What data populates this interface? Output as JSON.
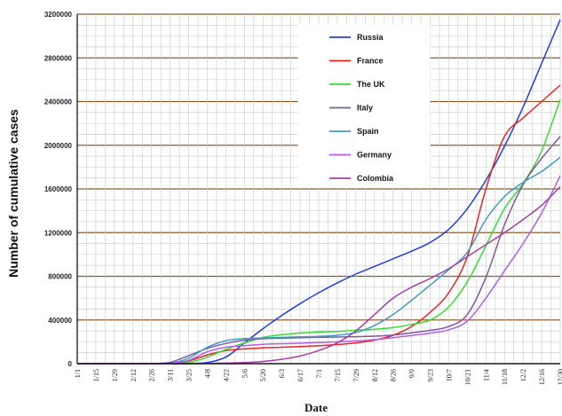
{
  "chart_data": {
    "type": "line",
    "title": "",
    "xlabel": "Date",
    "ylabel": "Number of cumulative cases",
    "ylim": [
      0,
      3200000
    ],
    "yticks": [
      0,
      400000,
      800000,
      1200000,
      1600000,
      2000000,
      2400000,
      2800000,
      3200000
    ],
    "ytick_labels": [
      "0",
      "400000",
      "800000",
      "1200000",
      "1600000",
      "2000000",
      "2400000",
      "2800000",
      "3200000"
    ],
    "x_ticks": [
      "1/1",
      "1/15",
      "1/29",
      "2/12",
      "2/26",
      "3/11",
      "3/25",
      "4/8",
      "4/22",
      "5/6",
      "5/20",
      "6/3",
      "6/17",
      "7/1",
      "7/15",
      "7/29",
      "8/12",
      "8/26",
      "9/9",
      "9/23",
      "10/7",
      "10/21",
      "11/4",
      "11/18",
      "12/2",
      "12/16",
      "12/30"
    ],
    "grid": true,
    "legend_position": "top-center",
    "colors": {
      "grid": "#c8c8c8",
      "major_grid": "#8b5a2b",
      "axis": "#000000"
    },
    "series": [
      {
        "name": "Russia",
        "color": "#1f3fe0",
        "x": [
          "3/11",
          "3/25",
          "4/8",
          "4/22",
          "5/6",
          "5/20",
          "6/3",
          "6/17",
          "7/1",
          "7/15",
          "7/29",
          "8/12",
          "8/26",
          "9/9",
          "9/23",
          "10/7",
          "10/21",
          "11/4",
          "11/18",
          "12/2",
          "12/16",
          "12/30"
        ],
        "values": [
          0,
          1000,
          10000,
          60000,
          190000,
          320000,
          440000,
          550000,
          650000,
          740000,
          820000,
          890000,
          960000,
          1030000,
          1110000,
          1230000,
          1420000,
          1680000,
          1990000,
          2350000,
          2750000,
          3150000
        ]
      },
      {
        "name": "France",
        "color": "#ee2222",
        "x": [
          "2/26",
          "3/11",
          "3/25",
          "4/8",
          "4/22",
          "5/6",
          "5/20",
          "6/3",
          "6/17",
          "7/1",
          "7/15",
          "7/29",
          "8/12",
          "8/26",
          "9/9",
          "9/23",
          "10/7",
          "10/21",
          "11/4",
          "11/18",
          "12/2",
          "12/16",
          "12/30"
        ],
        "values": [
          0,
          2000,
          25000,
          80000,
          120000,
          135000,
          145000,
          150000,
          157000,
          165000,
          175000,
          190000,
          215000,
          260000,
          340000,
          470000,
          650000,
          980000,
          1600000,
          2080000,
          2250000,
          2400000,
          2550000
        ]
      },
      {
        "name": "The UK",
        "color": "#33dd33",
        "x": [
          "2/26",
          "3/11",
          "3/25",
          "4/8",
          "4/22",
          "5/6",
          "5/20",
          "6/3",
          "6/17",
          "7/1",
          "7/15",
          "7/29",
          "8/12",
          "8/26",
          "9/9",
          "9/23",
          "10/7",
          "10/21",
          "11/4",
          "11/18",
          "12/2",
          "12/16",
          "12/30"
        ],
        "values": [
          0,
          1000,
          10000,
          60000,
          130000,
          190000,
          240000,
          265000,
          280000,
          290000,
          295000,
          305000,
          315000,
          330000,
          360000,
          400000,
          520000,
          750000,
          1080000,
          1420000,
          1650000,
          1950000,
          2420000
        ]
      },
      {
        "name": "Italy",
        "color": "#7d5a9e",
        "x": [
          "2/12",
          "2/26",
          "3/11",
          "3/25",
          "4/8",
          "4/22",
          "5/6",
          "5/20",
          "6/3",
          "6/17",
          "7/1",
          "7/15",
          "7/29",
          "8/12",
          "8/26",
          "9/9",
          "9/23",
          "10/7",
          "10/21",
          "11/4",
          "11/18",
          "12/2",
          "12/16",
          "12/30"
        ],
        "values": [
          0,
          500,
          12000,
          74000,
          140000,
          185000,
          215000,
          228000,
          234000,
          238000,
          241000,
          244000,
          247000,
          252000,
          262000,
          283000,
          305000,
          340000,
          450000,
          790000,
          1270000,
          1640000,
          1880000,
          2080000
        ]
      },
      {
        "name": "Spain",
        "color": "#3f9cc0",
        "x": [
          "2/26",
          "3/11",
          "3/25",
          "4/8",
          "4/22",
          "5/6",
          "5/20",
          "6/3",
          "6/17",
          "7/1",
          "7/15",
          "7/29",
          "8/12",
          "8/26",
          "9/9",
          "9/23",
          "10/7",
          "10/21",
          "11/4",
          "11/18",
          "12/2",
          "12/16",
          "12/30"
        ],
        "values": [
          0,
          2000,
          50000,
          150000,
          210000,
          230000,
          235000,
          240000,
          245000,
          250000,
          260000,
          285000,
          350000,
          450000,
          580000,
          720000,
          860000,
          1020000,
          1320000,
          1530000,
          1660000,
          1760000,
          1890000
        ]
      },
      {
        "name": "Germany",
        "color": "#b15de8",
        "x": [
          "2/26",
          "3/11",
          "3/25",
          "4/8",
          "4/22",
          "5/6",
          "5/20",
          "6/3",
          "6/17",
          "7/1",
          "7/15",
          "7/29",
          "8/12",
          "8/26",
          "9/9",
          "9/23",
          "10/7",
          "10/21",
          "11/4",
          "11/18",
          "12/2",
          "12/16",
          "12/30"
        ],
        "values": [
          0,
          1000,
          30000,
          110000,
          150000,
          165000,
          177000,
          183000,
          188000,
          194000,
          200000,
          208000,
          220000,
          238000,
          258000,
          280000,
          310000,
          390000,
          600000,
          850000,
          1100000,
          1380000,
          1720000
        ]
      },
      {
        "name": "Colombia",
        "color": "#a93ca8",
        "x": [
          "3/11",
          "3/25",
          "4/8",
          "4/22",
          "5/6",
          "5/20",
          "6/3",
          "6/17",
          "7/1",
          "7/15",
          "7/29",
          "8/12",
          "8/26",
          "9/9",
          "9/23",
          "10/7",
          "10/21",
          "11/4",
          "11/18",
          "12/2",
          "12/16",
          "12/30"
        ],
        "values": [
          0,
          200,
          2000,
          5000,
          10000,
          20000,
          40000,
          70000,
          120000,
          190000,
          300000,
          450000,
          600000,
          700000,
          780000,
          870000,
          980000,
          1090000,
          1200000,
          1320000,
          1450000,
          1620000
        ]
      }
    ]
  }
}
